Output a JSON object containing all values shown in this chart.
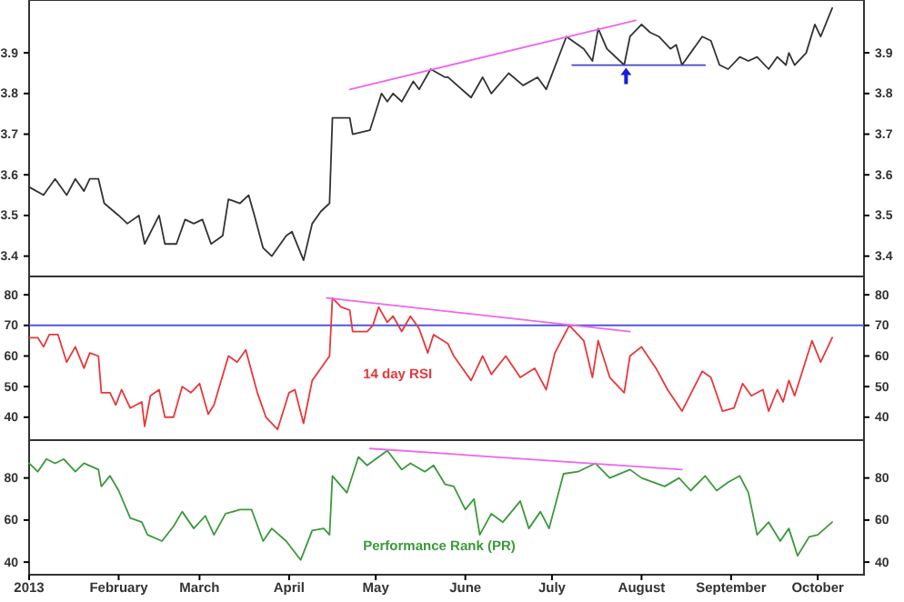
{
  "chart_data": [
    {
      "type": "line",
      "xlim": [
        "2013-01-01",
        "2013-10-17"
      ],
      "ylim": [
        3.35,
        4.03
      ],
      "yticks": [
        3.4,
        3.5,
        3.6,
        3.7,
        3.8,
        3.9
      ],
      "y2lim": [
        3.35,
        4.03
      ],
      "y2ticks": [
        3.4,
        3.5,
        3.6,
        3.7,
        3.8,
        3.9
      ],
      "tick_labels": "y",
      "series": [
        {
          "color": "#333333",
          "x": [
            "2013-01-01",
            "2013-01-06",
            "2013-01-10",
            "2013-01-14",
            "2013-01-17",
            "2013-01-20",
            "2013-01-22",
            "2013-01-25",
            "2013-01-27",
            "2013-02-01",
            "2013-02-04",
            "2013-02-08",
            "2013-02-10",
            "2013-02-15",
            "2013-02-17",
            "2013-02-21",
            "2013-02-24",
            "2013-02-27",
            "2013-03-02",
            "2013-03-05",
            "2013-03-09",
            "2013-03-11",
            "2013-03-15",
            "2013-03-18",
            "2013-03-20",
            "2013-03-23",
            "2013-03-26",
            "2013-03-31",
            "2013-04-02",
            "2013-04-06",
            "2013-04-09",
            "2013-04-12",
            "2013-04-15",
            "2013-04-16",
            "2013-04-22",
            "2013-04-23",
            "2013-04-29",
            "2013-05-03",
            "2013-05-05",
            "2013-05-07",
            "2013-05-10",
            "2013-05-14",
            "2013-05-16",
            "2013-05-20",
            "2013-05-25",
            "2013-05-26",
            "2013-06-03",
            "2013-06-07",
            "2013-06-10",
            "2013-06-16",
            "2013-06-21",
            "2013-06-26",
            "2013-06-29",
            "2013-07-06",
            "2013-07-12",
            "2013-07-15",
            "2013-07-17",
            "2013-07-20",
            "2013-07-26",
            "2013-07-28",
            "2013-08-01",
            "2013-08-04",
            "2013-08-07",
            "2013-08-11",
            "2013-08-13",
            "2013-08-15",
            "2013-08-22",
            "2013-08-25",
            "2013-08-28",
            "2013-08-31",
            "2013-09-04",
            "2013-09-07",
            "2013-09-10",
            "2013-09-14",
            "2013-09-17",
            "2013-09-20",
            "2013-09-21",
            "2013-09-23",
            "2013-09-27",
            "2013-09-30",
            "2013-10-02",
            "2013-10-06"
          ],
          "values": [
            3.57,
            3.55,
            3.59,
            3.55,
            3.59,
            3.56,
            3.59,
            3.59,
            3.53,
            3.5,
            3.48,
            3.5,
            3.43,
            3.5,
            3.43,
            3.43,
            3.49,
            3.48,
            3.49,
            3.43,
            3.45,
            3.54,
            3.53,
            3.55,
            3.5,
            3.42,
            3.4,
            3.45,
            3.46,
            3.39,
            3.48,
            3.51,
            3.53,
            3.74,
            3.74,
            3.7,
            3.71,
            3.8,
            3.78,
            3.8,
            3.78,
            3.83,
            3.81,
            3.86,
            3.84,
            3.84,
            3.79,
            3.84,
            3.8,
            3.85,
            3.82,
            3.84,
            3.81,
            3.94,
            3.91,
            3.88,
            3.96,
            3.91,
            3.87,
            3.94,
            3.97,
            3.95,
            3.94,
            3.91,
            3.92,
            3.87,
            3.94,
            3.93,
            3.87,
            3.86,
            3.89,
            3.88,
            3.89,
            3.86,
            3.89,
            3.87,
            3.9,
            3.87,
            3.9,
            3.97,
            3.94,
            4.01
          ]
        },
        {
          "color": "#ee66ee",
          "x": [
            "2013-04-22",
            "2013-07-30"
          ],
          "values": [
            3.81,
            3.98
          ]
        },
        {
          "color": "#4444cc",
          "x": [
            "2013-07-08",
            "2013-08-23"
          ],
          "values": [
            3.87,
            3.87
          ]
        }
      ]
    },
    {
      "type": "line",
      "xlim": [
        "2013-01-01",
        "2013-10-17"
      ],
      "ylim": [
        32.5,
        86
      ],
      "yticks": [
        40,
        50,
        60,
        70,
        80
      ],
      "y2lim": [
        32.5,
        86
      ],
      "y2ticks": [
        40,
        50,
        60,
        70,
        80
      ],
      "tick_labels": "y",
      "ref_lines": [
        {
          "axis": "y",
          "value": 70,
          "color": "#5555dd"
        }
      ],
      "series": [
        {
          "name": "14 day RSI",
          "color": "#e8383b",
          "x": [
            "2013-01-01",
            "2013-01-04",
            "2013-01-06",
            "2013-01-08",
            "2013-01-11",
            "2013-01-14",
            "2013-01-17",
            "2013-01-20",
            "2013-01-22",
            "2013-01-25",
            "2013-01-26",
            "2013-01-29",
            "2013-01-31",
            "2013-02-02",
            "2013-02-05",
            "2013-02-09",
            "2013-02-10",
            "2013-02-12",
            "2013-02-15",
            "2013-02-17",
            "2013-02-20",
            "2013-02-23",
            "2013-02-26",
            "2013-03-01",
            "2013-03-04",
            "2013-03-06",
            "2013-03-11",
            "2013-03-14",
            "2013-03-17",
            "2013-03-21",
            "2013-03-24",
            "2013-03-28",
            "2013-04-01",
            "2013-04-03",
            "2013-04-06",
            "2013-04-09",
            "2013-04-12",
            "2013-04-15",
            "2013-04-16",
            "2013-04-19",
            "2013-04-22",
            "2013-04-23",
            "2013-04-28",
            "2013-04-30",
            "2013-05-02",
            "2013-05-05",
            "2013-05-07",
            "2013-05-10",
            "2013-05-13",
            "2013-05-16",
            "2013-05-19",
            "2013-05-21",
            "2013-05-26",
            "2013-05-28",
            "2013-05-31",
            "2013-06-03",
            "2013-06-07",
            "2013-06-10",
            "2013-06-15",
            "2013-06-20",
            "2013-06-25",
            "2013-06-29",
            "2013-07-02",
            "2013-07-07",
            "2013-07-12",
            "2013-07-15",
            "2013-07-17",
            "2013-07-21",
            "2013-07-26",
            "2013-07-28",
            "2013-08-01",
            "2013-08-06",
            "2013-08-10",
            "2013-08-15",
            "2013-08-22",
            "2013-08-25",
            "2013-08-29",
            "2013-09-02",
            "2013-09-05",
            "2013-09-08",
            "2013-09-12",
            "2013-09-14",
            "2013-09-17",
            "2013-09-19",
            "2013-09-21",
            "2013-09-23",
            "2013-09-29",
            "2013-10-02",
            "2013-10-06"
          ],
          "values": [
            66,
            66,
            63,
            67,
            67,
            58,
            63,
            56,
            61,
            60,
            48,
            48,
            44,
            49,
            43,
            45,
            37,
            47,
            49,
            40,
            40,
            50,
            48,
            51,
            41,
            44,
            60,
            58,
            62,
            48,
            40,
            36,
            48,
            49,
            38,
            52,
            56,
            60,
            79,
            76,
            75,
            68,
            68,
            70,
            76,
            71,
            73,
            68,
            73,
            69,
            61,
            67,
            64,
            60,
            56,
            52,
            60,
            54,
            60,
            53,
            56,
            49,
            61,
            70,
            65,
            53,
            65,
            53,
            48,
            60,
            63,
            56,
            49,
            42,
            55,
            53,
            42,
            43,
            51,
            47,
            49,
            42,
            49,
            45,
            52,
            47,
            65,
            58,
            66
          ]
        },
        {
          "color": "#ee66ee",
          "x": [
            "2013-04-14",
            "2013-07-28"
          ],
          "values": [
            79,
            68
          ]
        }
      ]
    },
    {
      "type": "line",
      "xlim": [
        "2013-01-01",
        "2013-10-17"
      ],
      "ylim": [
        34,
        98
      ],
      "yticks": [
        40,
        60,
        80
      ],
      "y2lim": [
        34,
        98
      ],
      "y2ticks": [
        40,
        60,
        80
      ],
      "xticks": [
        {
          "value": "2013-01-01",
          "label": "2013"
        },
        {
          "value": "2013-02-01",
          "label": "February"
        },
        {
          "value": "2013-03-01",
          "label": "March"
        },
        {
          "value": "2013-04-01",
          "label": "April"
        },
        {
          "value": "2013-05-01",
          "label": "May"
        },
        {
          "value": "2013-06-01",
          "label": "June"
        },
        {
          "value": "2013-07-01",
          "label": "July"
        },
        {
          "value": "2013-08-01",
          "label": "August"
        },
        {
          "value": "2013-09-01",
          "label": "September"
        },
        {
          "value": "2013-10-01",
          "label": "October"
        }
      ],
      "series": [
        {
          "name": "Performance Rank (PR)",
          "color": "#3a9a3a",
          "x": [
            "2013-01-01",
            "2013-01-04",
            "2013-01-07",
            "2013-01-10",
            "2013-01-13",
            "2013-01-17",
            "2013-01-20",
            "2013-01-25",
            "2013-01-26",
            "2013-01-29",
            "2013-02-01",
            "2013-02-05",
            "2013-02-09",
            "2013-02-11",
            "2013-02-16",
            "2013-02-20",
            "2013-02-23",
            "2013-02-27",
            "2013-03-03",
            "2013-03-06",
            "2013-03-10",
            "2013-03-15",
            "2013-03-19",
            "2013-03-23",
            "2013-03-26",
            "2013-03-31",
            "2013-04-05",
            "2013-04-09",
            "2013-04-13",
            "2013-04-15",
            "2013-04-16",
            "2013-04-21",
            "2013-04-25",
            "2013-04-28",
            "2013-05-05",
            "2013-05-10",
            "2013-05-13",
            "2013-05-18",
            "2013-05-21",
            "2013-05-25",
            "2013-05-28",
            "2013-06-01",
            "2013-06-04",
            "2013-06-06",
            "2013-06-10",
            "2013-06-14",
            "2013-06-20",
            "2013-06-23",
            "2013-06-27",
            "2013-06-30",
            "2013-07-05",
            "2013-07-10",
            "2013-07-16",
            "2013-07-21",
            "2013-07-28",
            "2013-08-01",
            "2013-08-09",
            "2013-08-14",
            "2013-08-18",
            "2013-08-23",
            "2013-08-27",
            "2013-08-31",
            "2013-09-04",
            "2013-09-07",
            "2013-09-10",
            "2013-09-14",
            "2013-09-18",
            "2013-09-21",
            "2013-09-24",
            "2013-09-28",
            "2013-10-01",
            "2013-10-06"
          ],
          "values": [
            87,
            83,
            89,
            87,
            89,
            83,
            87,
            84,
            76,
            81,
            74,
            61,
            59,
            53,
            50,
            57,
            64,
            56,
            62,
            53,
            63,
            65,
            65,
            50,
            56,
            50,
            41,
            55,
            56,
            53,
            81,
            73,
            90,
            86,
            93,
            84,
            87,
            83,
            86,
            77,
            76,
            65,
            70,
            53,
            63,
            59,
            69,
            56,
            64,
            56,
            82,
            83,
            87,
            80,
            84,
            80,
            76,
            80,
            74,
            81,
            74,
            78,
            81,
            73,
            53,
            59,
            50,
            56,
            43,
            52,
            53,
            59
          ]
        },
        {
          "color": "#ee66ee",
          "x": [
            "2013-04-29",
            "2013-08-15"
          ],
          "values": [
            94,
            84
          ]
        }
      ]
    }
  ]
}
